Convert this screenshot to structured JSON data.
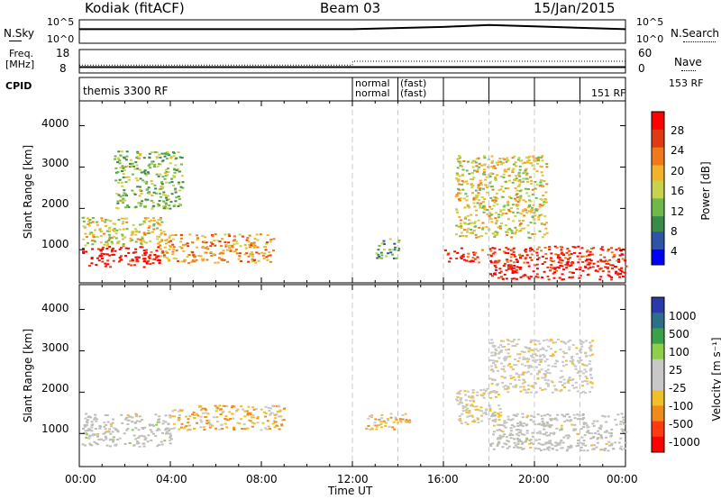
{
  "header": {
    "station": "Kodiak (fitACF)",
    "beam": "Beam 03",
    "date": "15/Jan/2015"
  },
  "top_panel": {
    "left_label": "N.Sky",
    "right_label": "N.Search",
    "left_ticks": [
      "10^5",
      "10^0"
    ],
    "right_ticks": [
      "10^5",
      "10^0"
    ]
  },
  "freq_panel": {
    "left_label_1": "Freq.",
    "left_label_2": "[MHz]",
    "right_label": "Nave",
    "left_ticks": [
      "18",
      "8"
    ],
    "right_ticks": [
      "60",
      "0"
    ]
  },
  "cpid_panel": {
    "label": "CPID",
    "segments": [
      {
        "text": "themis 3300 RF"
      },
      {
        "text": "normal"
      },
      {
        "text": "normal"
      },
      {
        "text": "(fast)"
      },
      {
        "text": "(fast)"
      },
      {
        "text": "153 RF"
      },
      {
        "text": "151 RF"
      }
    ]
  },
  "x_axis": {
    "label": "Time UT",
    "ticks": [
      "00:00",
      "04:00",
      "08:00",
      "12:00",
      "16:00",
      "20:00",
      "00:00"
    ]
  },
  "power_panel": {
    "ylabel": "Slant Range [km]",
    "yticks": [
      "4000",
      "3000",
      "2000",
      "1000"
    ],
    "colorbar_label": "Power [dB]",
    "colorbar_ticks": [
      "28",
      "24",
      "20",
      "16",
      "12",
      "8",
      "4"
    ]
  },
  "velocity_panel": {
    "ylabel": "Slant Range [km]",
    "yticks": [
      "4000",
      "3000",
      "2000",
      "1000"
    ],
    "colorbar_label": "Velocity [m s⁻¹]",
    "colorbar_ticks": [
      "1000",
      "500",
      "100",
      "25",
      "-25",
      "-100",
      "-500",
      "-1000"
    ]
  },
  "colors": {
    "power_scale": [
      "#0000ff",
      "#2e54a8",
      "#3a8a4a",
      "#6fb84a",
      "#c8d24a",
      "#f2b32a",
      "#f07a1a",
      "#e03a12",
      "#ff0000"
    ],
    "velocity_scale": [
      "#2a3aa8",
      "#2e6e8a",
      "#3aa04a",
      "#8cd04a",
      "#c8c8c8",
      "#c8c8c8",
      "#f0c02a",
      "#f08a1a",
      "#ff3a10",
      "#ff0000"
    ],
    "ground_scatter": "#bebeb6"
  },
  "chart_data": [
    {
      "type": "line",
      "title": "N.Sky / N.Search",
      "x_range_hours": [
        0,
        24
      ],
      "y_scale": "log",
      "ylim": [
        1,
        100000
      ],
      "series": [
        {
          "name": "N.Sky",
          "x": [
            0,
            4,
            8,
            12,
            16,
            18,
            20,
            24
          ],
          "values": [
            1000,
            1000,
            1000,
            1000,
            3000,
            8000,
            4000,
            1000
          ]
        }
      ]
    },
    {
      "type": "line",
      "title": "Freq / Nave",
      "x_range_hours": [
        0,
        24
      ],
      "ylim": [
        8,
        18
      ],
      "series": [
        {
          "name": "Freq.",
          "x": [
            0,
            12,
            24
          ],
          "values": [
            10.5,
            10.5,
            10.5
          ]
        },
        {
          "name": "Nave",
          "x": [
            0,
            12,
            12.01,
            24
          ],
          "values": [
            20,
            20,
            30,
            30
          ]
        }
      ]
    },
    {
      "type": "heatmap",
      "title": "Power [dB]",
      "x_range_hours": [
        0,
        24
      ],
      "ylim": [
        200,
        4600
      ],
      "clim": [
        0,
        30
      ],
      "features": [
        {
          "x": [
            0.1,
            3.5
          ],
          "range": [
            600,
            1100
          ],
          "level": 28
        },
        {
          "x": [
            0.1,
            3.8
          ],
          "range": [
            1100,
            1800
          ],
          "level": 16
        },
        {
          "x": [
            3.5,
            8.5
          ],
          "range": [
            700,
            1400
          ],
          "level": 20
        },
        {
          "x": [
            1.5,
            4.5
          ],
          "range": [
            2000,
            3400
          ],
          "level": 12
        },
        {
          "x": [
            13.0,
            14.0
          ],
          "range": [
            800,
            1300
          ],
          "level": 10
        },
        {
          "x": [
            16.0,
            24.0
          ],
          "range": [
            700,
            1100
          ],
          "level": 26
        },
        {
          "x": [
            18.0,
            24.0
          ],
          "range": [
            300,
            700
          ],
          "level": 28
        },
        {
          "x": [
            16.5,
            20.5
          ],
          "range": [
            1300,
            3300
          ],
          "level": 16
        }
      ]
    },
    {
      "type": "heatmap",
      "title": "Velocity [m s⁻¹]",
      "x_range_hours": [
        0,
        24
      ],
      "ylim": [
        200,
        4600
      ],
      "clim": [
        -1000,
        1000
      ],
      "features": [
        {
          "x": [
            0.1,
            4.0
          ],
          "range": [
            700,
            1500
          ],
          "level": 0
        },
        {
          "x": [
            4.0,
            9.0
          ],
          "range": [
            1100,
            1700
          ],
          "level": -300
        },
        {
          "x": [
            12.5,
            14.5
          ],
          "range": [
            1100,
            1500
          ],
          "level": -300
        },
        {
          "x": [
            16.5,
            18.5
          ],
          "range": [
            1200,
            2100
          ],
          "level": -150
        },
        {
          "x": [
            18.0,
            24.0
          ],
          "range": [
            600,
            1500
          ],
          "level": 0
        },
        {
          "x": [
            18.0,
            22.5
          ],
          "range": [
            2000,
            3300
          ],
          "level": -80
        }
      ]
    }
  ]
}
